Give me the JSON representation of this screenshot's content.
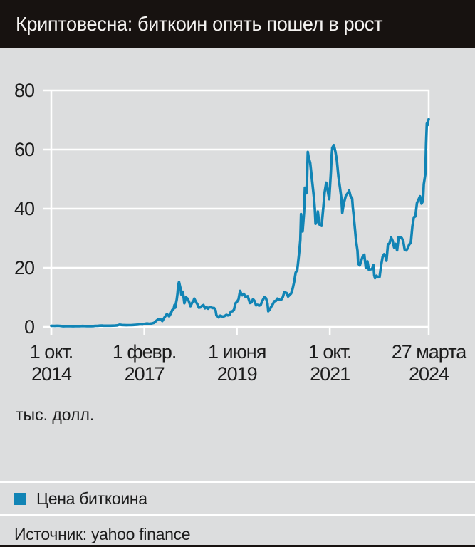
{
  "title": "Криптовесна: биткоин опять пошел в рост",
  "source": "Источник: yahoo finance",
  "colors": {
    "background": "#dcddde",
    "title_bar": "#171210",
    "line": "#1184b5",
    "grid": "#ffffff",
    "text": "#1c1c1c"
  },
  "legend": {
    "items": [
      {
        "label": "Цена биткоина",
        "color": "#1184b5"
      }
    ]
  },
  "chart_data": {
    "type": "line",
    "title": "Криптовесна: биткоин опять пошел в рост",
    "unit": "тыс. долл.",
    "ylabel": "тыс. долл.",
    "xlabel": "",
    "ylim": [
      0,
      80
    ],
    "y_ticks": [
      0,
      20,
      40,
      60,
      80
    ],
    "grid": true,
    "legend_position": "bottom",
    "x_range": [
      "2014-10-01",
      "2024-03-27"
    ],
    "x_ticks": [
      {
        "date": "2014-10-01",
        "label": "1 окт.",
        "year": "2014"
      },
      {
        "date": "2017-02-01",
        "label": "1 февр.",
        "year": "2017"
      },
      {
        "date": "2019-06-01",
        "label": "1 июня",
        "year": "2019"
      },
      {
        "date": "2021-10-01",
        "label": "1 окт.",
        "year": "2021"
      },
      {
        "date": "2024-03-27",
        "label": "27 марта",
        "year": "2024"
      }
    ],
    "series": [
      {
        "name": "Цена биткоина",
        "color": "#1184b5",
        "points": [
          [
            "2014-10-01",
            0.39
          ],
          [
            "2014-10-19",
            0.36
          ],
          [
            "2014-11-02",
            0.33
          ],
          [
            "2014-11-16",
            0.38
          ],
          [
            "2014-11-30",
            0.38
          ],
          [
            "2014-12-14",
            0.35
          ],
          [
            "2014-12-28",
            0.32
          ],
          [
            "2015-01-18",
            0.21
          ],
          [
            "2015-02-08",
            0.23
          ],
          [
            "2015-03-08",
            0.27
          ],
          [
            "2015-03-29",
            0.25
          ],
          [
            "2015-04-19",
            0.22
          ],
          [
            "2015-05-10",
            0.24
          ],
          [
            "2015-05-31",
            0.23
          ],
          [
            "2015-06-21",
            0.24
          ],
          [
            "2015-07-12",
            0.31
          ],
          [
            "2015-08-02",
            0.28
          ],
          [
            "2015-08-23",
            0.23
          ],
          [
            "2015-09-13",
            0.23
          ],
          [
            "2015-10-04",
            0.24
          ],
          [
            "2015-10-25",
            0.29
          ],
          [
            "2015-11-08",
            0.37
          ],
          [
            "2015-11-29",
            0.36
          ],
          [
            "2015-12-20",
            0.44
          ],
          [
            "2016-01-10",
            0.45
          ],
          [
            "2016-01-24",
            0.4
          ],
          [
            "2016-02-14",
            0.41
          ],
          [
            "2016-03-06",
            0.41
          ],
          [
            "2016-03-27",
            0.42
          ],
          [
            "2016-04-17",
            0.43
          ],
          [
            "2016-05-08",
            0.46
          ],
          [
            "2016-05-29",
            0.53
          ],
          [
            "2016-06-19",
            0.76
          ],
          [
            "2016-07-10",
            0.65
          ],
          [
            "2016-07-31",
            0.62
          ],
          [
            "2016-08-21",
            0.58
          ],
          [
            "2016-09-11",
            0.61
          ],
          [
            "2016-10-02",
            0.61
          ],
          [
            "2016-10-23",
            0.65
          ],
          [
            "2016-11-13",
            0.7
          ],
          [
            "2016-12-04",
            0.77
          ],
          [
            "2016-12-25",
            0.9
          ],
          [
            "2017-01-15",
            0.82
          ],
          [
            "2017-02-05",
            1.03
          ],
          [
            "2017-02-26",
            1.19
          ],
          [
            "2017-03-19",
            1.03
          ],
          [
            "2017-04-09",
            1.18
          ],
          [
            "2017-04-30",
            1.35
          ],
          [
            "2017-05-21",
            2.05
          ],
          [
            "2017-06-11",
            2.66
          ],
          [
            "2017-07-02",
            2.52
          ],
          [
            "2017-07-16",
            1.99
          ],
          [
            "2017-08-06",
            3.26
          ],
          [
            "2017-08-27",
            4.35
          ],
          [
            "2017-09-17",
            3.58
          ],
          [
            "2017-10-01",
            4.4
          ],
          [
            "2017-10-15",
            5.7
          ],
          [
            "2017-10-29",
            6.15
          ],
          [
            "2017-11-05",
            7.4
          ],
          [
            "2017-11-12",
            6.5
          ],
          [
            "2017-11-19",
            8.0
          ],
          [
            "2017-11-26",
            9.3
          ],
          [
            "2017-12-03",
            11.4
          ],
          [
            "2017-12-10",
            14.3
          ],
          [
            "2017-12-17",
            15.2
          ],
          [
            "2017-12-24",
            14.0
          ],
          [
            "2017-12-31",
            12.9
          ],
          [
            "2018-01-07",
            11.0
          ],
          [
            "2018-01-21",
            11.9
          ],
          [
            "2018-02-04",
            8.0
          ],
          [
            "2018-02-18",
            10.0
          ],
          [
            "2018-03-04",
            9.6
          ],
          [
            "2018-03-18",
            8.6
          ],
          [
            "2018-04-01",
            7.0
          ],
          [
            "2018-04-15",
            8.1
          ],
          [
            "2018-04-29",
            8.9
          ],
          [
            "2018-05-06",
            9.6
          ],
          [
            "2018-05-20",
            8.5
          ],
          [
            "2018-06-03",
            7.7
          ],
          [
            "2018-06-17",
            6.5
          ],
          [
            "2018-07-01",
            6.6
          ],
          [
            "2018-07-15",
            7.1
          ],
          [
            "2018-07-29",
            7.4
          ],
          [
            "2018-08-12",
            6.3
          ],
          [
            "2018-08-26",
            6.7
          ],
          [
            "2018-09-09",
            6.2
          ],
          [
            "2018-09-23",
            6.7
          ],
          [
            "2018-10-07",
            6.6
          ],
          [
            "2018-10-21",
            6.4
          ],
          [
            "2018-11-04",
            6.4
          ],
          [
            "2018-11-18",
            5.6
          ],
          [
            "2018-11-25",
            3.9
          ],
          [
            "2018-12-09",
            3.5
          ],
          [
            "2018-12-16",
            3.2
          ],
          [
            "2018-12-30",
            3.8
          ],
          [
            "2019-01-13",
            3.6
          ],
          [
            "2019-01-27",
            3.5
          ],
          [
            "2019-02-10",
            3.7
          ],
          [
            "2019-02-24",
            4.1
          ],
          [
            "2019-03-10",
            3.9
          ],
          [
            "2019-03-24",
            4.0
          ],
          [
            "2019-04-07",
            5.2
          ],
          [
            "2019-04-21",
            5.3
          ],
          [
            "2019-05-05",
            5.8
          ],
          [
            "2019-05-19",
            8.0
          ],
          [
            "2019-06-02",
            8.5
          ],
          [
            "2019-06-16",
            9.3
          ],
          [
            "2019-06-30",
            12.2
          ],
          [
            "2019-07-14",
            11.0
          ],
          [
            "2019-07-21",
            10.7
          ],
          [
            "2019-08-04",
            11.2
          ],
          [
            "2019-08-18",
            10.2
          ],
          [
            "2019-09-08",
            10.4
          ],
          [
            "2019-09-29",
            8.1
          ],
          [
            "2019-10-13",
            8.3
          ],
          [
            "2019-10-27",
            9.4
          ],
          [
            "2019-11-10",
            8.8
          ],
          [
            "2019-11-24",
            7.3
          ],
          [
            "2019-12-08",
            7.5
          ],
          [
            "2019-12-22",
            7.2
          ],
          [
            "2020-01-05",
            7.4
          ],
          [
            "2020-01-19",
            8.7
          ],
          [
            "2020-02-09",
            10.1
          ],
          [
            "2020-02-23",
            9.7
          ],
          [
            "2020-03-08",
            8.0
          ],
          [
            "2020-03-15",
            5.3
          ],
          [
            "2020-03-29",
            5.9
          ],
          [
            "2020-04-12",
            6.9
          ],
          [
            "2020-04-26",
            7.7
          ],
          [
            "2020-05-10",
            8.7
          ],
          [
            "2020-05-24",
            8.8
          ],
          [
            "2020-06-07",
            9.6
          ],
          [
            "2020-06-28",
            9.1
          ],
          [
            "2020-07-12",
            9.2
          ],
          [
            "2020-07-26",
            10.0
          ],
          [
            "2020-08-09",
            11.7
          ],
          [
            "2020-08-30",
            11.5
          ],
          [
            "2020-09-13",
            10.3
          ],
          [
            "2020-09-27",
            10.8
          ],
          [
            "2020-10-11",
            11.3
          ],
          [
            "2020-10-25",
            13.0
          ],
          [
            "2020-11-08",
            15.3
          ],
          [
            "2020-11-22",
            18.4
          ],
          [
            "2020-12-06",
            19.2
          ],
          [
            "2020-12-20",
            23.8
          ],
          [
            "2020-12-27",
            26.4
          ],
          [
            "2021-01-03",
            29.4
          ],
          [
            "2021-01-10",
            38.2
          ],
          [
            "2021-01-24",
            32.3
          ],
          [
            "2021-02-07",
            38.9
          ],
          [
            "2021-02-14",
            47.1
          ],
          [
            "2021-02-28",
            45.2
          ],
          [
            "2021-03-07",
            50.9
          ],
          [
            "2021-03-13",
            59.2
          ],
          [
            "2021-03-21",
            57.4
          ],
          [
            "2021-04-04",
            55.5
          ],
          [
            "2021-04-25",
            48.3
          ],
          [
            "2021-05-09",
            43.6
          ],
          [
            "2021-05-16",
            40.2
          ],
          [
            "2021-05-23",
            34.9
          ],
          [
            "2021-06-06",
            35.8
          ],
          [
            "2021-06-13",
            39.0
          ],
          [
            "2021-06-27",
            34.7
          ],
          [
            "2021-07-18",
            34.2
          ],
          [
            "2021-08-01",
            39.9
          ],
          [
            "2021-08-15",
            45.6
          ],
          [
            "2021-08-29",
            48.8
          ],
          [
            "2021-09-12",
            46.1
          ],
          [
            "2021-09-26",
            43.2
          ],
          [
            "2021-10-10",
            51.8
          ],
          [
            "2021-10-17",
            57.4
          ],
          [
            "2021-10-24",
            60.6
          ],
          [
            "2021-11-07",
            61.5
          ],
          [
            "2021-11-21",
            59.4
          ],
          [
            "2021-12-05",
            56.2
          ],
          [
            "2021-12-19",
            50.9
          ],
          [
            "2022-01-02",
            47.3
          ],
          [
            "2022-01-16",
            43.2
          ],
          [
            "2022-01-23",
            38.6
          ],
          [
            "2022-02-06",
            41.8
          ],
          [
            "2022-02-27",
            44.5
          ],
          [
            "2022-03-20",
            45.5
          ],
          [
            "2022-03-27",
            46.2
          ],
          [
            "2022-04-10",
            44.2
          ],
          [
            "2022-04-24",
            43.4
          ],
          [
            "2022-05-01",
            40.2
          ],
          [
            "2022-05-08",
            37.8
          ],
          [
            "2022-05-15",
            35.0
          ],
          [
            "2022-05-22",
            32.2
          ],
          [
            "2022-05-29",
            29.5
          ],
          [
            "2022-06-12",
            25.8
          ],
          [
            "2022-06-19",
            21.4
          ],
          [
            "2022-07-03",
            20.8
          ],
          [
            "2022-07-17",
            22.5
          ],
          [
            "2022-07-31",
            23.9
          ],
          [
            "2022-08-14",
            24.4
          ],
          [
            "2022-08-28",
            20.0
          ],
          [
            "2022-09-11",
            22.2
          ],
          [
            "2022-09-25",
            19.3
          ],
          [
            "2022-10-09",
            19.5
          ],
          [
            "2022-10-23",
            19.6
          ],
          [
            "2022-11-06",
            20.9
          ],
          [
            "2022-11-13",
            17.5
          ],
          [
            "2022-11-20",
            16.5
          ],
          [
            "2022-12-04",
            17.3
          ],
          [
            "2022-12-18",
            16.8
          ],
          [
            "2023-01-01",
            16.9
          ],
          [
            "2023-01-15",
            20.9
          ],
          [
            "2023-01-29",
            23.7
          ],
          [
            "2023-02-12",
            24.6
          ],
          [
            "2023-02-26",
            23.6
          ],
          [
            "2023-03-05",
            22.4
          ],
          [
            "2023-03-19",
            28.0
          ],
          [
            "2023-04-02",
            28.2
          ],
          [
            "2023-04-16",
            30.3
          ],
          [
            "2023-04-30",
            29.2
          ],
          [
            "2023-05-14",
            26.9
          ],
          [
            "2023-05-28",
            28.1
          ],
          [
            "2023-06-11",
            25.9
          ],
          [
            "2023-06-25",
            30.4
          ],
          [
            "2023-07-09",
            30.3
          ],
          [
            "2023-07-23",
            30.1
          ],
          [
            "2023-08-06",
            29.1
          ],
          [
            "2023-08-20",
            26.1
          ],
          [
            "2023-09-03",
            25.9
          ],
          [
            "2023-09-17",
            26.6
          ],
          [
            "2023-10-01",
            28.0
          ],
          [
            "2023-10-15",
            28.4
          ],
          [
            "2023-10-29",
            34.1
          ],
          [
            "2023-11-12",
            37.1
          ],
          [
            "2023-11-26",
            37.4
          ],
          [
            "2023-12-10",
            41.9
          ],
          [
            "2023-12-24",
            43.0
          ],
          [
            "2024-01-07",
            44.2
          ],
          [
            "2024-01-21",
            41.7
          ],
          [
            "2024-02-04",
            42.6
          ],
          [
            "2024-02-11",
            48.3
          ],
          [
            "2024-02-25",
            51.7
          ],
          [
            "2024-03-03",
            62.0
          ],
          [
            "2024-03-10",
            69.0
          ],
          [
            "2024-03-17",
            68.3
          ],
          [
            "2024-03-24",
            69.9
          ],
          [
            "2024-03-27",
            70.3
          ]
        ]
      }
    ]
  }
}
